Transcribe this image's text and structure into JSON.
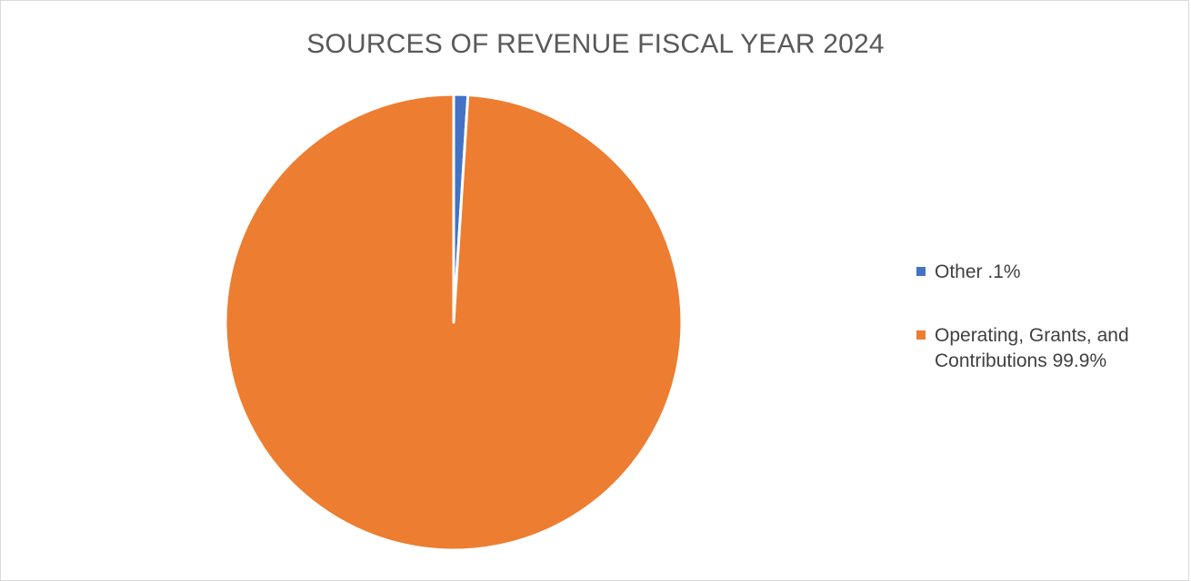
{
  "chart_data": {
    "type": "pie",
    "title": "SOURCES OF REVENUE FISCAL YEAR 2024",
    "slices": [
      {
        "label": "Other .1%",
        "value": 0.1,
        "color": "#4472c4"
      },
      {
        "label": "Operating, Grants, and Contributions 99.9%",
        "value": 99.9,
        "color": "#ed7d31"
      }
    ],
    "legend_position": "right"
  }
}
